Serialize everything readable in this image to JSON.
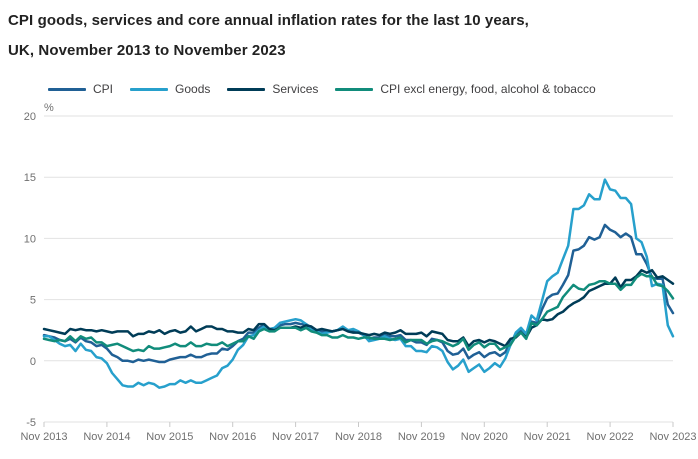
{
  "title": {
    "line1": "CPI goods, services and core annual inflation rates for the last 10 years,",
    "line2": "UK, November 2013 to November 2023"
  },
  "legend": [
    {
      "label": "CPI",
      "color": "#206095"
    },
    {
      "label": "Goods",
      "color": "#27A0CC"
    },
    {
      "label": "Services",
      "color": "#003C57"
    },
    {
      "label": "CPI excl energy, food, alcohol & tobacco",
      "color": "#118C7B"
    }
  ],
  "colors": {
    "title_text": "#222222",
    "axis_text": "#707070",
    "gridline": "#e2e2e2",
    "tick_mark": "#c9c9c9"
  },
  "chart_data": {
    "type": "line",
    "title": "CPI goods, services and core annual inflation rates for the last 10 years, UK, November 2013 to November 2023",
    "xlabel": "",
    "ylabel": "%",
    "ylim": [
      -5,
      20
    ],
    "yticks": [
      20,
      15,
      10,
      5,
      0,
      -5
    ],
    "grid": "horizontal",
    "legend_position": "top",
    "x_frequency": "monthly",
    "x_range": "Nov 2013 to Nov 2023 (121 monthly points per series)",
    "xticklabels": [
      "Nov 2013",
      "Nov 2014",
      "Nov 2015",
      "Nov 2016",
      "Nov 2017",
      "Nov 2018",
      "Nov 2019",
      "Nov 2020",
      "Nov 2021",
      "Nov 2022",
      "Nov 2023"
    ],
    "xtick_month_interval": 12,
    "series": [
      {
        "name": "CPI",
        "color": "#206095",
        "values": [
          2.1,
          2.0,
          1.9,
          1.7,
          1.6,
          1.8,
          1.5,
          1.9,
          1.6,
          1.5,
          1.2,
          1.3,
          1.0,
          0.5,
          0.3,
          0.0,
          0.0,
          -0.1,
          0.1,
          0.0,
          0.1,
          0.0,
          -0.1,
          -0.1,
          0.1,
          0.2,
          0.3,
          0.3,
          0.5,
          0.3,
          0.3,
          0.5,
          0.6,
          0.6,
          1.0,
          0.9,
          1.2,
          1.6,
          1.8,
          2.3,
          2.3,
          2.7,
          2.9,
          2.6,
          2.6,
          2.9,
          3.0,
          3.0,
          3.1,
          3.0,
          3.0,
          2.7,
          2.5,
          2.4,
          2.4,
          2.4,
          2.5,
          2.7,
          2.4,
          2.4,
          2.3,
          2.1,
          1.8,
          1.9,
          1.9,
          2.1,
          2.0,
          2.0,
          2.1,
          1.7,
          1.7,
          1.5,
          1.5,
          1.3,
          1.8,
          1.7,
          1.5,
          0.8,
          0.5,
          0.6,
          1.0,
          0.2,
          0.5,
          0.7,
          0.3,
          0.6,
          0.7,
          0.4,
          0.7,
          1.5,
          2.1,
          2.5,
          2.0,
          3.2,
          3.1,
          4.2,
          5.1,
          5.4,
          5.5,
          6.2,
          7.0,
          9.0,
          9.1,
          9.4,
          10.1,
          9.9,
          10.1,
          11.1,
          10.7,
          10.5,
          10.1,
          10.4,
          10.1,
          8.7,
          8.7,
          7.9,
          6.8,
          6.7,
          6.7,
          4.6,
          3.9
        ]
      },
      {
        "name": "Goods",
        "color": "#27A0CC",
        "values": [
          2.0,
          2.0,
          1.7,
          1.4,
          1.2,
          1.3,
          0.8,
          1.4,
          0.9,
          0.8,
          0.3,
          0.2,
          -0.2,
          -1.0,
          -1.5,
          -2.0,
          -2.1,
          -2.1,
          -1.8,
          -2.0,
          -1.8,
          -1.9,
          -2.2,
          -2.1,
          -1.9,
          -1.9,
          -1.6,
          -1.8,
          -1.6,
          -1.8,
          -1.8,
          -1.6,
          -1.4,
          -1.2,
          -0.6,
          -0.4,
          0.1,
          0.9,
          1.3,
          2.0,
          2.1,
          2.5,
          2.8,
          2.6,
          2.7,
          3.1,
          3.2,
          3.3,
          3.4,
          3.3,
          3.0,
          2.5,
          2.4,
          2.2,
          2.3,
          2.4,
          2.5,
          2.8,
          2.5,
          2.6,
          2.4,
          2.1,
          1.6,
          1.7,
          1.8,
          2.0,
          1.8,
          1.7,
          1.8,
          1.2,
          1.2,
          0.8,
          0.8,
          0.7,
          1.2,
          1.1,
          0.8,
          -0.1,
          -0.7,
          -0.4,
          0.1,
          -0.9,
          -0.6,
          -0.3,
          -0.9,
          -0.6,
          -0.2,
          -0.5,
          0.2,
          1.3,
          2.3,
          2.7,
          2.2,
          3.7,
          3.3,
          4.9,
          6.5,
          6.9,
          7.2,
          8.3,
          9.4,
          12.4,
          12.4,
          12.7,
          13.6,
          13.2,
          13.2,
          14.8,
          14.0,
          13.9,
          13.3,
          13.3,
          12.8,
          10.0,
          9.7,
          8.5,
          6.1,
          6.3,
          6.2,
          2.9,
          2.0
        ]
      },
      {
        "name": "Services",
        "color": "#003C57",
        "values": [
          2.6,
          2.5,
          2.4,
          2.3,
          2.2,
          2.6,
          2.5,
          2.6,
          2.5,
          2.5,
          2.4,
          2.5,
          2.4,
          2.3,
          2.4,
          2.4,
          2.4,
          2.0,
          2.2,
          2.2,
          2.4,
          2.3,
          2.5,
          2.2,
          2.4,
          2.5,
          2.3,
          2.4,
          2.8,
          2.4,
          2.6,
          2.8,
          2.8,
          2.6,
          2.6,
          2.4,
          2.4,
          2.3,
          2.3,
          2.6,
          2.5,
          3.0,
          3.0,
          2.6,
          2.5,
          2.7,
          2.7,
          2.7,
          2.8,
          2.7,
          2.9,
          2.8,
          2.5,
          2.6,
          2.5,
          2.4,
          2.5,
          2.6,
          2.4,
          2.3,
          2.3,
          2.2,
          2.1,
          2.2,
          2.1,
          2.3,
          2.2,
          2.3,
          2.5,
          2.2,
          2.2,
          2.2,
          2.3,
          2.0,
          2.4,
          2.3,
          2.2,
          1.7,
          1.6,
          1.6,
          1.9,
          1.2,
          1.6,
          1.7,
          1.5,
          1.7,
          1.6,
          1.4,
          1.2,
          1.8,
          1.9,
          2.3,
          1.9,
          2.7,
          2.9,
          3.4,
          3.3,
          3.4,
          3.8,
          4.0,
          4.4,
          4.7,
          4.9,
          5.2,
          5.7,
          5.9,
          6.1,
          6.3,
          6.3,
          6.8,
          6.0,
          6.6,
          6.6,
          6.9,
          7.4,
          7.2,
          7.4,
          6.8,
          6.9,
          6.6,
          6.3
        ]
      },
      {
        "name": "CPI excl energy, food, alcohol & tobacco",
        "color": "#118C7B",
        "values": [
          1.8,
          1.7,
          1.6,
          1.7,
          1.6,
          2.0,
          1.6,
          2.0,
          1.8,
          1.9,
          1.5,
          1.5,
          1.2,
          1.3,
          1.4,
          1.2,
          1.0,
          0.8,
          0.9,
          0.8,
          1.2,
          1.0,
          1.0,
          1.1,
          1.2,
          1.4,
          1.2,
          1.2,
          1.5,
          1.2,
          1.2,
          1.4,
          1.3,
          1.3,
          1.5,
          1.2,
          1.4,
          1.6,
          1.6,
          2.0,
          1.8,
          2.4,
          2.6,
          2.4,
          2.4,
          2.7,
          2.7,
          2.7,
          2.7,
          2.5,
          2.7,
          2.4,
          2.3,
          2.1,
          2.1,
          1.9,
          1.9,
          2.1,
          1.9,
          1.9,
          1.8,
          1.9,
          1.9,
          1.8,
          1.8,
          1.8,
          1.7,
          1.8,
          1.9,
          1.5,
          1.7,
          1.7,
          1.7,
          1.4,
          1.6,
          1.7,
          1.6,
          1.4,
          1.2,
          1.4,
          1.8,
          0.9,
          1.3,
          1.5,
          1.1,
          1.4,
          1.4,
          0.9,
          1.1,
          1.3,
          2.0,
          2.3,
          1.8,
          3.1,
          2.9,
          3.4,
          4.0,
          4.2,
          4.4,
          5.2,
          5.7,
          6.2,
          5.9,
          5.8,
          6.2,
          6.3,
          6.5,
          6.5,
          6.3,
          6.3,
          5.8,
          6.2,
          6.2,
          6.8,
          7.1,
          6.9,
          6.9,
          6.2,
          6.1,
          5.7,
          5.1
        ]
      }
    ]
  }
}
